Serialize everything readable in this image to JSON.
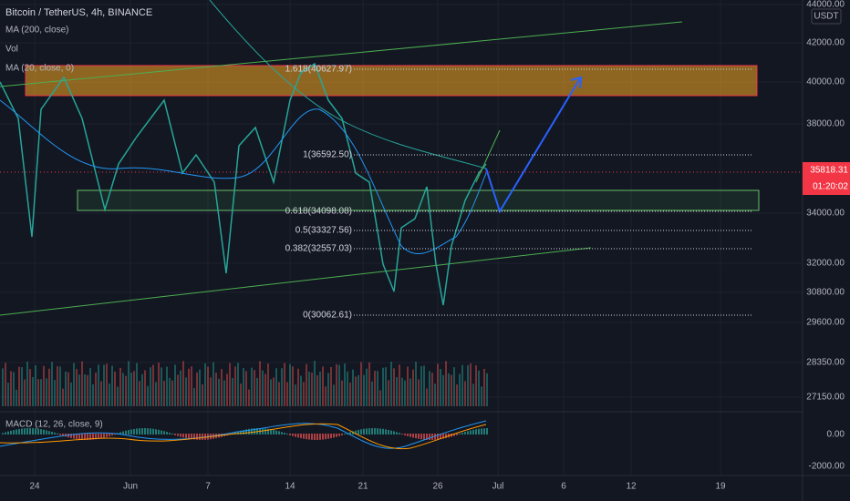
{
  "header": {
    "symbol": "Bitcoin / TetherUS, 4h, BINANCE",
    "indicators": [
      "MA (200, close)",
      "Vol",
      "MA (20, close, 0)"
    ]
  },
  "price_axis": {
    "currency": "USDT",
    "labels": [
      "44000.00",
      "42000.00",
      "40000.00",
      "38000.00",
      "34000.00",
      "32000.00",
      "30800.00",
      "29600.00",
      "28350.00",
      "27150.00"
    ],
    "current_price": "35818.31",
    "countdown": "01:20:02"
  },
  "macd": {
    "label": "MACD (12, 26, close, 9)",
    "axis_labels": [
      "0.00",
      "-2000.00"
    ]
  },
  "time_axis": {
    "labels": [
      "24",
      "Jun",
      "7",
      "14",
      "21",
      "26",
      "Jul",
      "6",
      "12",
      "19"
    ]
  },
  "fib": {
    "levels": [
      "1.618(40627.97)",
      "1(36592.50)",
      "0.618(34098.08)",
      "0.5(33327.56)",
      "0.382(32557.03)",
      "0(30062.61)"
    ]
  }
}
